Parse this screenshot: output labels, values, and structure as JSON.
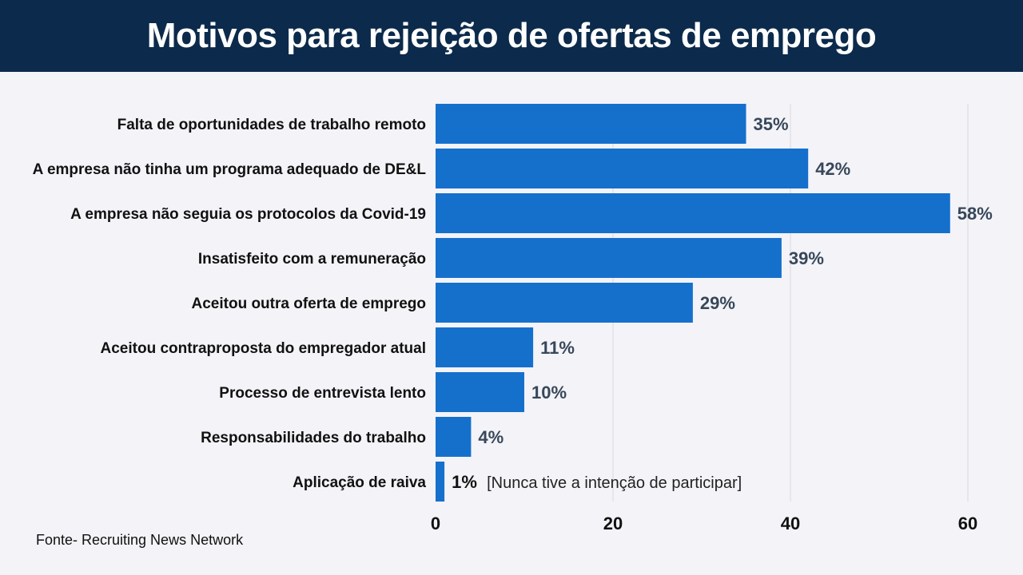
{
  "chart_data": {
    "type": "bar",
    "orientation": "horizontal",
    "title": "Motivos para rejeição de ofertas de emprego",
    "categories": [
      "Falta de oportunidades de trabalho remoto",
      "A empresa não tinha um programa adequado de DE&L",
      "A empresa não seguia os protocolos da Covid-19",
      "Insatisfeito com a remuneração",
      "Aceitou outra oferta de emprego",
      "Aceitou contraproposta do empregador atual",
      "Processo de entrevista lento",
      "Responsabilidades do trabalho",
      "Aplicação de raiva"
    ],
    "values": [
      35,
      42,
      58,
      39,
      29,
      11,
      10,
      4,
      1
    ],
    "data_labels": [
      "35%",
      "42%",
      "58%",
      "39%",
      "29%",
      "11%",
      "10%",
      "4%",
      "1%"
    ],
    "annotations": [
      {
        "category": "Aplicação de raiva",
        "text": "[Nunca tive a intenção de participar]"
      }
    ],
    "xlim": [
      0,
      60
    ],
    "xticks": [
      0,
      20,
      40,
      60
    ],
    "xtick_labels": [
      "0",
      "20",
      "40",
      "60"
    ],
    "grid": "vertical",
    "colors": {
      "bar": "#1570cc",
      "header": "#0c2a4b",
      "value_label": "#37475a",
      "background": "#f3f3f8"
    }
  },
  "source": "Fonte- Recruiting News Network"
}
